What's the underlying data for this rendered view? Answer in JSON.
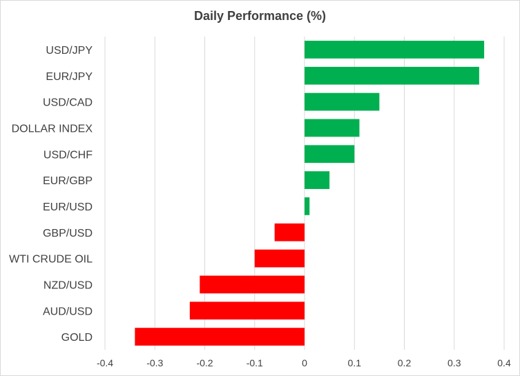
{
  "chart_data": {
    "type": "bar",
    "orientation": "horizontal",
    "title": "Daily Performance  (%)",
    "xlabel": "",
    "ylabel": "",
    "categories": [
      "USD/JPY",
      "EUR/JPY",
      "USD/CAD",
      "DOLLAR INDEX",
      "USD/CHF",
      "EUR/GBP",
      "EUR/USD",
      "GBP/USD",
      "WTI CRUDE OIL",
      "NZD/USD",
      "AUD/USD",
      "GOLD"
    ],
    "values": [
      0.36,
      0.35,
      0.15,
      0.11,
      0.1,
      0.05,
      0.01,
      -0.06,
      -0.1,
      -0.21,
      -0.23,
      -0.34
    ],
    "xlim": [
      -0.4,
      0.4
    ],
    "xticks": [
      "-0.4",
      "-0.3",
      "-0.2",
      "-0.1",
      "0",
      "0.1",
      "0.2",
      "0.3",
      "0.4"
    ],
    "grid": true,
    "colors": {
      "positive": "#00b050",
      "negative": "#ff0000",
      "grid": "#d9d9d9",
      "text": "#404040"
    }
  }
}
